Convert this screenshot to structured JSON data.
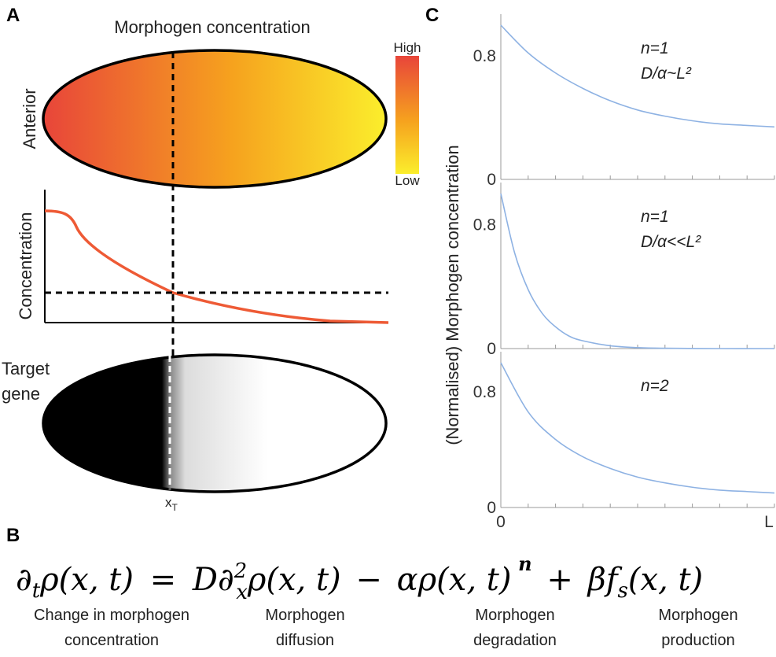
{
  "panels": {
    "a": "A",
    "b": "B",
    "c": "C"
  },
  "panel_a": {
    "title": "Morphogen concentration",
    "anterior_label": "Anterior",
    "concentration_label": "Concentration",
    "target_gene_line1": "Target",
    "target_gene_line2": "gene",
    "colorbar_high": "High",
    "colorbar_low": "Low",
    "threshold_label": "x",
    "threshold_subscript": "T",
    "colors": {
      "high": "#e8453a",
      "mid": "#f6a21e",
      "low": "#fbee2c",
      "curve": "#ee5a35"
    }
  },
  "chart_data": {
    "type": "line",
    "ylabel": "(Normalised) Morphogen concentration",
    "x_tick_labels": [
      "0",
      "L"
    ],
    "y_tick_labels": [
      "0",
      "0.8"
    ],
    "series_color": "#8eb2e3",
    "subplots": [
      {
        "annotation_line1": "n=1",
        "annotation_line2": "D/α~L²",
        "x": [
          0,
          0.1,
          0.2,
          0.3,
          0.4,
          0.5,
          0.6,
          0.7,
          0.8,
          0.9,
          1.0
        ],
        "y": [
          1.0,
          0.82,
          0.69,
          0.59,
          0.51,
          0.45,
          0.41,
          0.38,
          0.36,
          0.35,
          0.34
        ],
        "ylim": [
          0,
          1.0
        ]
      },
      {
        "annotation_line1": "n=1",
        "annotation_line2": "D/α<<L²",
        "x": [
          0,
          0.05,
          0.1,
          0.15,
          0.2,
          0.25,
          0.3,
          0.4,
          0.5,
          0.6,
          0.8,
          1.0
        ],
        "y": [
          1.0,
          0.62,
          0.38,
          0.23,
          0.14,
          0.08,
          0.05,
          0.018,
          0.006,
          0.002,
          0.0,
          0.0
        ],
        "ylim": [
          0,
          1.0
        ]
      },
      {
        "annotation_line1": "n=2",
        "annotation_line2": "",
        "x": [
          0,
          0.1,
          0.2,
          0.3,
          0.4,
          0.5,
          0.6,
          0.7,
          0.8,
          0.9,
          1.0
        ],
        "y": [
          1.0,
          0.66,
          0.47,
          0.35,
          0.27,
          0.21,
          0.17,
          0.14,
          0.12,
          0.11,
          0.1
        ],
        "ylim": [
          0,
          1.0
        ]
      }
    ]
  },
  "equation": {
    "lhs": "∂tρ(x, t)",
    "equals": "=",
    "term_diffusion": "D∂x²ρ(x, t)",
    "minus": "−",
    "term_degradation": "αρ(x, t)",
    "exponent": "n",
    "plus": "+",
    "term_production": "βfs(x, t)",
    "labels": [
      {
        "line1": "Change in morphogen",
        "line2": "concentration"
      },
      {
        "line1": "Morphogen",
        "line2": "diffusion"
      },
      {
        "line1": "Morphogen",
        "line2": "degradation"
      },
      {
        "line1": "Morphogen",
        "line2": "production"
      }
    ]
  }
}
